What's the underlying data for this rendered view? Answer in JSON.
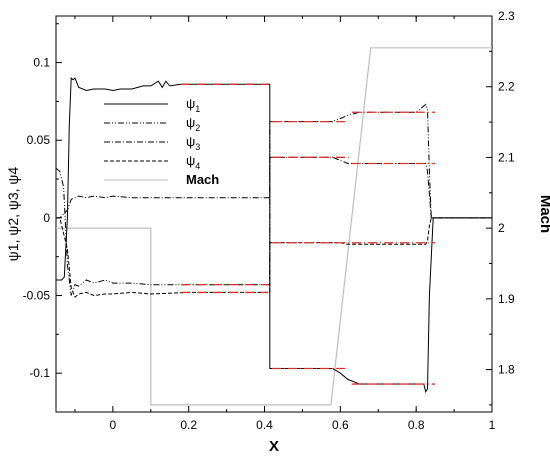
{
  "chart_data": {
    "type": "line",
    "xlabel": "X",
    "ylabel_left": "ψ1, ψ2, ψ3, ψ4",
    "ylabel_right": "Mach",
    "xlim": [
      -0.15,
      1.0
    ],
    "ylim_left": [
      -0.125,
      0.13
    ],
    "ylim_right": [
      1.74,
      2.3
    ],
    "x_ticks": [
      "0",
      "0.2",
      "0.4",
      "0.6",
      "0.8",
      "1"
    ],
    "y_left_ticks": [
      "0.1",
      "0.05",
      "0",
      "-0.05",
      "-0.1"
    ],
    "y_right_ticks": [
      "2.3",
      "2.2",
      "2.1",
      "2",
      "1.9",
      "1.8"
    ],
    "legend_position": "upper-left",
    "grid": false,
    "colors": {
      "reference": "#e0322b",
      "mach": "#bdbdbd",
      "psi": "#000000"
    },
    "legend": [
      {
        "label": "ψ",
        "sub": "1",
        "style": "solid"
      },
      {
        "label": "ψ",
        "sub": "2",
        "style": "dashdotdot"
      },
      {
        "label": "ψ",
        "sub": "3",
        "style": "dashdot"
      },
      {
        "label": "ψ",
        "sub": "4",
        "style": "dashed"
      },
      {
        "label": "Mach",
        "sub": "",
        "style": "mach"
      }
    ],
    "series": [
      {
        "name": "ψ1",
        "axis": "left",
        "style": "solid",
        "x": [
          -0.15,
          -0.135,
          -0.128,
          -0.12,
          -0.115,
          -0.11,
          -0.105,
          -0.1,
          -0.09,
          -0.07,
          -0.05,
          -0.02,
          0.0,
          0.02,
          0.05,
          0.08,
          0.1,
          0.12,
          0.13,
          0.14,
          0.15,
          0.18,
          0.25,
          0.35,
          0.414,
          0.414,
          0.42,
          0.45,
          0.5,
          0.55,
          0.58,
          0.6,
          0.62,
          0.65,
          0.7,
          0.75,
          0.8,
          0.82,
          0.825,
          0.83,
          0.835,
          0.845,
          0.86,
          1.0
        ],
        "y": [
          -0.04,
          -0.04,
          -0.038,
          0.0,
          0.06,
          0.09,
          0.089,
          0.09,
          0.084,
          0.082,
          0.083,
          0.083,
          0.082,
          0.083,
          0.083,
          0.085,
          0.085,
          0.088,
          0.084,
          0.088,
          0.085,
          0.086,
          0.086,
          0.086,
          0.086,
          -0.097,
          -0.097,
          -0.097,
          -0.097,
          -0.097,
          -0.097,
          -0.1,
          -0.104,
          -0.107,
          -0.107,
          -0.107,
          -0.107,
          -0.107,
          -0.112,
          -0.11,
          -0.05,
          0.0,
          0.0,
          0.0
        ]
      },
      {
        "name": "ψ2",
        "axis": "left",
        "style": "dashdotdot",
        "x": [
          -0.15,
          -0.14,
          -0.13,
          -0.12,
          -0.11,
          -0.1,
          -0.09,
          -0.07,
          -0.05,
          -0.02,
          0.0,
          0.05,
          0.1,
          0.2,
          0.3,
          0.4,
          0.414,
          0.414,
          0.42,
          0.45,
          0.5,
          0.55,
          0.58,
          0.6,
          0.62,
          0.65,
          0.7,
          0.75,
          0.8,
          0.825,
          0.83,
          0.835,
          0.84,
          0.86,
          1.0
        ],
        "y": [
          0.032,
          0.03,
          0.02,
          -0.03,
          -0.05,
          -0.043,
          -0.044,
          -0.04,
          -0.042,
          -0.04,
          -0.042,
          -0.042,
          -0.043,
          -0.043,
          -0.043,
          -0.043,
          -0.043,
          0.062,
          0.062,
          0.062,
          0.062,
          0.062,
          0.062,
          0.064,
          0.066,
          0.068,
          0.068,
          0.068,
          0.068,
          0.073,
          0.07,
          0.03,
          0.0,
          0.0,
          0.0
        ]
      },
      {
        "name": "ψ3",
        "axis": "left",
        "style": "dashdot",
        "x": [
          -0.15,
          -0.14,
          -0.12,
          -0.11,
          -0.1,
          -0.09,
          -0.07,
          -0.05,
          -0.02,
          0.0,
          0.05,
          0.1,
          0.2,
          0.3,
          0.4,
          0.414,
          0.414,
          0.42,
          0.45,
          0.5,
          0.55,
          0.58,
          0.6,
          0.62,
          0.65,
          0.7,
          0.75,
          0.8,
          0.825,
          0.83,
          0.835,
          0.84,
          0.86,
          1.0
        ],
        "y": [
          0.0,
          0.0,
          0.005,
          0.012,
          0.013,
          0.014,
          0.013,
          0.014,
          0.013,
          0.014,
          0.013,
          0.013,
          0.013,
          0.013,
          0.013,
          0.013,
          0.039,
          0.039,
          0.039,
          0.039,
          0.039,
          0.039,
          0.037,
          0.035,
          0.035,
          0.035,
          0.035,
          0.035,
          0.035,
          0.03,
          0.015,
          0.0,
          0.0,
          0.0
        ]
      },
      {
        "name": "ψ4",
        "axis": "left",
        "style": "dashed",
        "x": [
          -0.15,
          -0.14,
          -0.12,
          -0.11,
          -0.1,
          -0.09,
          -0.07,
          -0.05,
          -0.02,
          0.0,
          0.05,
          0.1,
          0.2,
          0.3,
          0.4,
          0.414,
          0.414,
          0.42,
          0.45,
          0.5,
          0.55,
          0.58,
          0.6,
          0.62,
          0.65,
          0.7,
          0.75,
          0.8,
          0.825,
          0.83,
          0.835,
          0.84,
          0.86,
          1.0
        ],
        "y": [
          0.0,
          0.0,
          -0.02,
          -0.045,
          -0.051,
          -0.049,
          -0.048,
          -0.05,
          -0.049,
          -0.049,
          -0.048,
          -0.049,
          -0.048,
          -0.048,
          -0.048,
          -0.048,
          -0.016,
          -0.016,
          -0.016,
          -0.016,
          -0.016,
          -0.016,
          -0.016,
          -0.017,
          -0.017,
          -0.017,
          -0.017,
          -0.017,
          -0.017,
          -0.015,
          -0.005,
          0.0,
          0.0,
          0.0
        ]
      },
      {
        "name": "Mach",
        "axis": "right",
        "style": "mach",
        "x": [
          -0.15,
          0.1,
          0.1,
          0.575,
          0.68,
          1.0
        ],
        "y": [
          2.0,
          2.0,
          1.75,
          1.75,
          2.255,
          2.255
        ]
      },
      {
        "name": "",
        "axis": "left",
        "style": "reference",
        "segments": [
          [
            0.18,
            0.41,
            0.086
          ],
          [
            0.18,
            0.41,
            -0.043
          ],
          [
            0.18,
            0.41,
            -0.048
          ],
          [
            0.42,
            0.62,
            0.062
          ],
          [
            0.63,
            0.85,
            0.068
          ],
          [
            0.42,
            0.63,
            0.039
          ],
          [
            0.63,
            0.85,
            0.035
          ],
          [
            0.42,
            0.85,
            -0.016
          ],
          [
            0.42,
            0.62,
            -0.097
          ],
          [
            0.63,
            0.85,
            -0.107
          ]
        ]
      }
    ]
  }
}
